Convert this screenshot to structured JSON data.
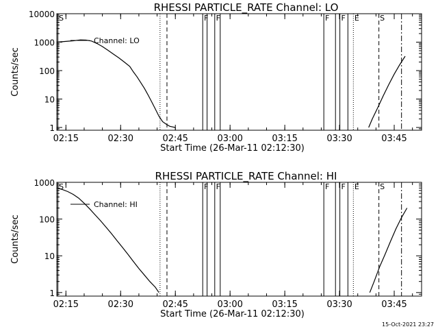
{
  "footer": {
    "timestamp": "15-Oct-2021 23:27"
  },
  "chart_data": [
    {
      "type": "line",
      "title": "RHESSI PARTICLE_RATE Channel: LO",
      "xlabel": "Start Time (26-Mar-11 02:12:30)",
      "ylabel": "Counts/sec",
      "y_scale": "log",
      "ylim": [
        0.8,
        10000
      ],
      "y_ticks": [
        "1",
        "10",
        "100",
        "1000",
        "10000"
      ],
      "x_range_min": [
        0,
        100
      ],
      "x_ticks": [
        "02:15",
        "02:30",
        "02:45",
        "03:00",
        "03:15",
        "03:30",
        "03:45"
      ],
      "legend": {
        "position": "top-left",
        "entries": [
          "Channel: LO"
        ]
      },
      "series": [
        {
          "name": "Channel: LO",
          "segments": [
            [
              [
                0,
                1000
              ],
              [
                2.5,
                1060
              ],
              [
                4.5,
                1120
              ],
              [
                6.5,
                1200
              ],
              [
                8,
                1180
              ],
              [
                9.5,
                1100
              ],
              [
                11,
                900
              ],
              [
                12.5,
                700
              ],
              [
                14,
                520
              ],
              [
                15.5,
                380
              ],
              [
                17,
                280
              ],
              [
                18.5,
                200
              ],
              [
                20,
                140
              ],
              [
                21,
                90
              ],
              [
                22,
                60
              ],
              [
                23,
                38
              ],
              [
                24,
                24
              ],
              [
                25,
                14
              ],
              [
                26,
                8
              ],
              [
                27,
                4.5
              ],
              [
                28,
                2.5
              ],
              [
                29,
                1.6
              ],
              [
                30,
                1.3
              ],
              [
                31,
                1.1
              ],
              [
                32.5,
                1
              ]
            ],
            [
              [
                85.5,
                1
              ],
              [
                86.5,
                2
              ],
              [
                88,
                5
              ],
              [
                89.5,
                13
              ],
              [
                91,
                32
              ],
              [
                92.5,
                75
              ],
              [
                94,
                160
              ],
              [
                95.5,
                320
              ]
            ]
          ]
        }
      ],
      "markers": [
        {
          "x": 0.3,
          "style": "solid",
          "label": "S"
        },
        {
          "x": 28.3,
          "style": "dotted",
          "label": ""
        },
        {
          "x": 30.2,
          "style": "dashed",
          "label": ""
        },
        {
          "x": 40.0,
          "style": "solid",
          "label": "F"
        },
        {
          "x": 41.2,
          "style": "solid",
          "label": ""
        },
        {
          "x": 43.3,
          "style": "solid",
          "label": "F"
        },
        {
          "x": 44.8,
          "style": "solid",
          "label": ""
        },
        {
          "x": 73.2,
          "style": "solid",
          "label": "F"
        },
        {
          "x": 76.4,
          "style": "solid",
          "label": ""
        },
        {
          "x": 77.6,
          "style": "solid",
          "label": "F"
        },
        {
          "x": 79.8,
          "style": "solid",
          "label": ""
        },
        {
          "x": 81.3,
          "style": "dotted",
          "label": "E"
        },
        {
          "x": 88.3,
          "style": "dashed",
          "label": "S"
        },
        {
          "x": 94.5,
          "style": "dashdot",
          "label": ""
        }
      ]
    },
    {
      "type": "line",
      "title": "RHESSI PARTICLE_RATE Channel: HI",
      "xlabel": "Start Time (26-Mar-11 02:12:30)",
      "ylabel": "Counts/sec",
      "y_scale": "log",
      "ylim": [
        0.8,
        1000
      ],
      "y_ticks": [
        "1",
        "10",
        "100",
        "1000"
      ],
      "x_range_min": [
        0,
        100
      ],
      "x_ticks": [
        "02:15",
        "02:30",
        "02:45",
        "03:00",
        "03:15",
        "03:30",
        "03:45"
      ],
      "legend": {
        "position": "top-left",
        "entries": [
          "Channel: HI"
        ]
      },
      "series": [
        {
          "name": "Channel: HI",
          "segments": [
            [
              [
                0,
                700
              ],
              [
                1.5,
                640
              ],
              [
                3,
                560
              ],
              [
                4.5,
                470
              ],
              [
                6,
                370
              ],
              [
                7.5,
                270
              ],
              [
                9,
                190
              ],
              [
                10.5,
                130
              ],
              [
                12,
                90
              ],
              [
                13.5,
                60
              ],
              [
                15,
                40
              ],
              [
                16.5,
                26
              ],
              [
                18,
                17
              ],
              [
                19.5,
                11
              ],
              [
                21,
                7
              ],
              [
                22.5,
                4.5
              ],
              [
                24,
                3
              ],
              [
                25.5,
                2
              ],
              [
                27,
                1.4
              ],
              [
                28,
                1
              ]
            ],
            [
              [
                85.8,
                1
              ],
              [
                87,
                2
              ],
              [
                88.5,
                5
              ],
              [
                90,
                11
              ],
              [
                91.5,
                25
              ],
              [
                93,
                55
              ],
              [
                94.5,
                110
              ],
              [
                96,
                200
              ]
            ]
          ]
        }
      ],
      "markers": [
        {
          "x": 0.3,
          "style": "solid",
          "label": "S"
        },
        {
          "x": 28.3,
          "style": "dotted",
          "label": ""
        },
        {
          "x": 30.2,
          "style": "dashed",
          "label": ""
        },
        {
          "x": 40.0,
          "style": "solid",
          "label": "F"
        },
        {
          "x": 41.2,
          "style": "solid",
          "label": ""
        },
        {
          "x": 43.3,
          "style": "solid",
          "label": "F"
        },
        {
          "x": 44.8,
          "style": "solid",
          "label": ""
        },
        {
          "x": 73.2,
          "style": "solid",
          "label": "F"
        },
        {
          "x": 76.4,
          "style": "solid",
          "label": ""
        },
        {
          "x": 77.6,
          "style": "solid",
          "label": "F"
        },
        {
          "x": 79.8,
          "style": "solid",
          "label": ""
        },
        {
          "x": 81.3,
          "style": "dotted",
          "label": "E"
        },
        {
          "x": 88.3,
          "style": "dashed",
          "label": "S"
        },
        {
          "x": 94.5,
          "style": "dashdot",
          "label": ""
        }
      ]
    }
  ]
}
